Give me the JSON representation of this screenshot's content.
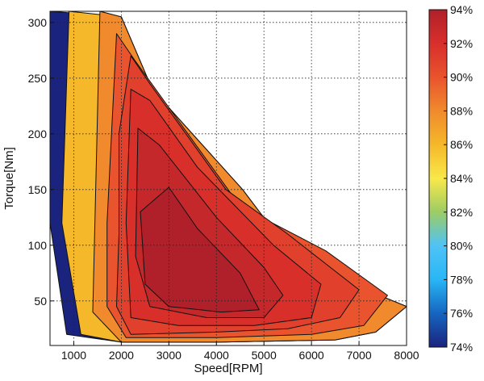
{
  "chart_data": {
    "type": "heatmap",
    "subtype": "filled-contour efficiency map",
    "title": "",
    "xlabel": "Speed[RPM]",
    "ylabel": "Torque[Nm]",
    "xlim": [
      500,
      8000
    ],
    "ylim": [
      10,
      310
    ],
    "x_ticks": [
      1000,
      2000,
      3000,
      4000,
      5000,
      6000,
      7000,
      8000
    ],
    "x_tick_labels": [
      "1000",
      "2000",
      "3000",
      "4000",
      "5000",
      "6000",
      "7000",
      "8000"
    ],
    "y_ticks": [
      50,
      100,
      150,
      200,
      250,
      300
    ],
    "y_tick_labels": [
      "50",
      "100",
      "150",
      "200",
      "250",
      "300"
    ],
    "grid": true,
    "grid_style": "dotted",
    "colorbar": {
      "min": 74,
      "max": 94,
      "unit": "%",
      "ticks": [
        74,
        76,
        78,
        80,
        82,
        84,
        86,
        88,
        90,
        92,
        94
      ],
      "tick_labels": [
        "74%",
        "76%",
        "78%",
        "80%",
        "82%",
        "84%",
        "86%",
        "88%",
        "90%",
        "92%",
        "94%"
      ],
      "colormap": "jet",
      "stops": [
        "#1a237e",
        "#1565c0",
        "#29b6f6",
        "#4fc3f7",
        "#9ccc65",
        "#f9e84a",
        "#f5b82a",
        "#f08a2c",
        "#e9532d",
        "#d82f2b",
        "#b0202a"
      ]
    },
    "operating_envelope": [
      [
        500,
        310
      ],
      [
        2000,
        305
      ],
      [
        2650,
        240
      ],
      [
        4550,
        150
      ],
      [
        5700,
        85
      ],
      [
        8000,
        45
      ],
      [
        7350,
        22
      ],
      [
        6500,
        15
      ],
      [
        4000,
        13
      ],
      [
        2000,
        13
      ],
      [
        850,
        20
      ],
      [
        500,
        120
      ]
    ],
    "efficiency_regions": [
      {
        "level": 74,
        "polygon": [
          [
            500,
            310
          ],
          [
            2000,
            305
          ],
          [
            2650,
            240
          ],
          [
            4550,
            150
          ],
          [
            5700,
            85
          ],
          [
            8000,
            45
          ],
          [
            7350,
            22
          ],
          [
            6500,
            15
          ],
          [
            4000,
            13
          ],
          [
            2000,
            13
          ],
          [
            850,
            20
          ],
          [
            500,
            120
          ]
        ]
      },
      {
        "level": 86,
        "polygon": [
          [
            900,
            310
          ],
          [
            2000,
            305
          ],
          [
            2650,
            240
          ],
          [
            4550,
            150
          ],
          [
            5700,
            85
          ],
          [
            8000,
            45
          ],
          [
            7350,
            22
          ],
          [
            6500,
            15
          ],
          [
            4000,
            13
          ],
          [
            2000,
            13
          ],
          [
            1150,
            20
          ],
          [
            750,
            120
          ]
        ]
      },
      {
        "level": 88,
        "polygon": [
          [
            1550,
            310
          ],
          [
            2000,
            305
          ],
          [
            2650,
            240
          ],
          [
            4550,
            150
          ],
          [
            5700,
            85
          ],
          [
            8000,
            45
          ],
          [
            7350,
            22
          ],
          [
            6500,
            15
          ],
          [
            4000,
            13
          ],
          [
            2000,
            13
          ],
          [
            1400,
            40
          ]
        ]
      },
      {
        "level": 90,
        "polygon": [
          [
            1900,
            290
          ],
          [
            2300,
            265
          ],
          [
            4500,
            135
          ],
          [
            6300,
            95
          ],
          [
            7600,
            55
          ],
          [
            7100,
            28
          ],
          [
            6000,
            20
          ],
          [
            4000,
            17
          ],
          [
            2100,
            17
          ],
          [
            1700,
            45
          ],
          [
            1700,
            120
          ]
        ]
      },
      {
        "level": 91,
        "polygon": [
          [
            2200,
            270
          ],
          [
            2600,
            245
          ],
          [
            4200,
            150
          ],
          [
            5500,
            110
          ],
          [
            7000,
            60
          ],
          [
            6600,
            35
          ],
          [
            5500,
            25
          ],
          [
            4000,
            22
          ],
          [
            2200,
            20
          ],
          [
            1900,
            45
          ],
          [
            1950,
            110
          ],
          [
            1950,
            200
          ]
        ]
      },
      {
        "level": 92,
        "polygon": [
          [
            2200,
            240
          ],
          [
            2600,
            230
          ],
          [
            3600,
            170
          ],
          [
            5200,
            100
          ],
          [
            6200,
            65
          ],
          [
            6000,
            35
          ],
          [
            4800,
            28
          ],
          [
            3200,
            28
          ],
          [
            2200,
            35
          ],
          [
            2100,
            120
          ]
        ]
      },
      {
        "level": 93,
        "polygon": [
          [
            2350,
            205
          ],
          [
            2800,
            190
          ],
          [
            4000,
            125
          ],
          [
            5000,
            80
          ],
          [
            5400,
            55
          ],
          [
            5000,
            35
          ],
          [
            3800,
            35
          ],
          [
            2600,
            45
          ],
          [
            2300,
            90
          ]
        ]
      },
      {
        "level": 94,
        "polygon": [
          [
            2400,
            130
          ],
          [
            3000,
            152
          ],
          [
            3600,
            115
          ],
          [
            4500,
            75
          ],
          [
            4900,
            42
          ],
          [
            4100,
            40
          ],
          [
            3000,
            45
          ],
          [
            2500,
            65
          ]
        ]
      }
    ]
  }
}
